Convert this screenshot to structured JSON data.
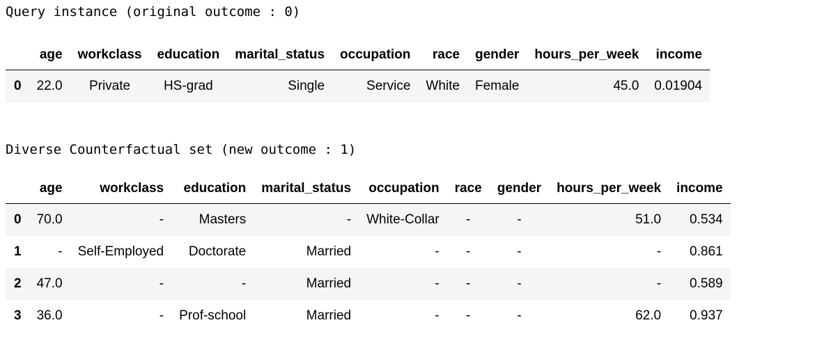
{
  "query": {
    "title": "Query instance (original outcome : 0)",
    "columns": [
      "",
      "age",
      "workclass",
      "education",
      "marital_status",
      "occupation",
      "race",
      "gender",
      "hours_per_week",
      "income"
    ],
    "rows": [
      [
        "0",
        "22.0",
        "Private",
        "HS-grad",
        "Single",
        "Service",
        "White",
        "Female",
        "45.0",
        "0.01904"
      ]
    ]
  },
  "counterfactual": {
    "title": "Diverse Counterfactual set (new outcome : 1)",
    "columns": [
      "",
      "age",
      "workclass",
      "education",
      "marital_status",
      "occupation",
      "race",
      "gender",
      "hours_per_week",
      "income"
    ],
    "rows": [
      [
        "0",
        "70.0",
        "-",
        "Masters",
        "-",
        "White-Collar",
        "-",
        "-",
        "51.0",
        "0.534"
      ],
      [
        "1",
        "-",
        "Self-Employed",
        "Doctorate",
        "Married",
        "-",
        "-",
        "-",
        "-",
        "0.861"
      ],
      [
        "2",
        "47.0",
        "-",
        "-",
        "Married",
        "-",
        "-",
        "-",
        "-",
        "0.589"
      ],
      [
        "3",
        "36.0",
        "-",
        "Prof-school",
        "Married",
        "-",
        "-",
        "-",
        "62.0",
        "0.937"
      ]
    ]
  }
}
